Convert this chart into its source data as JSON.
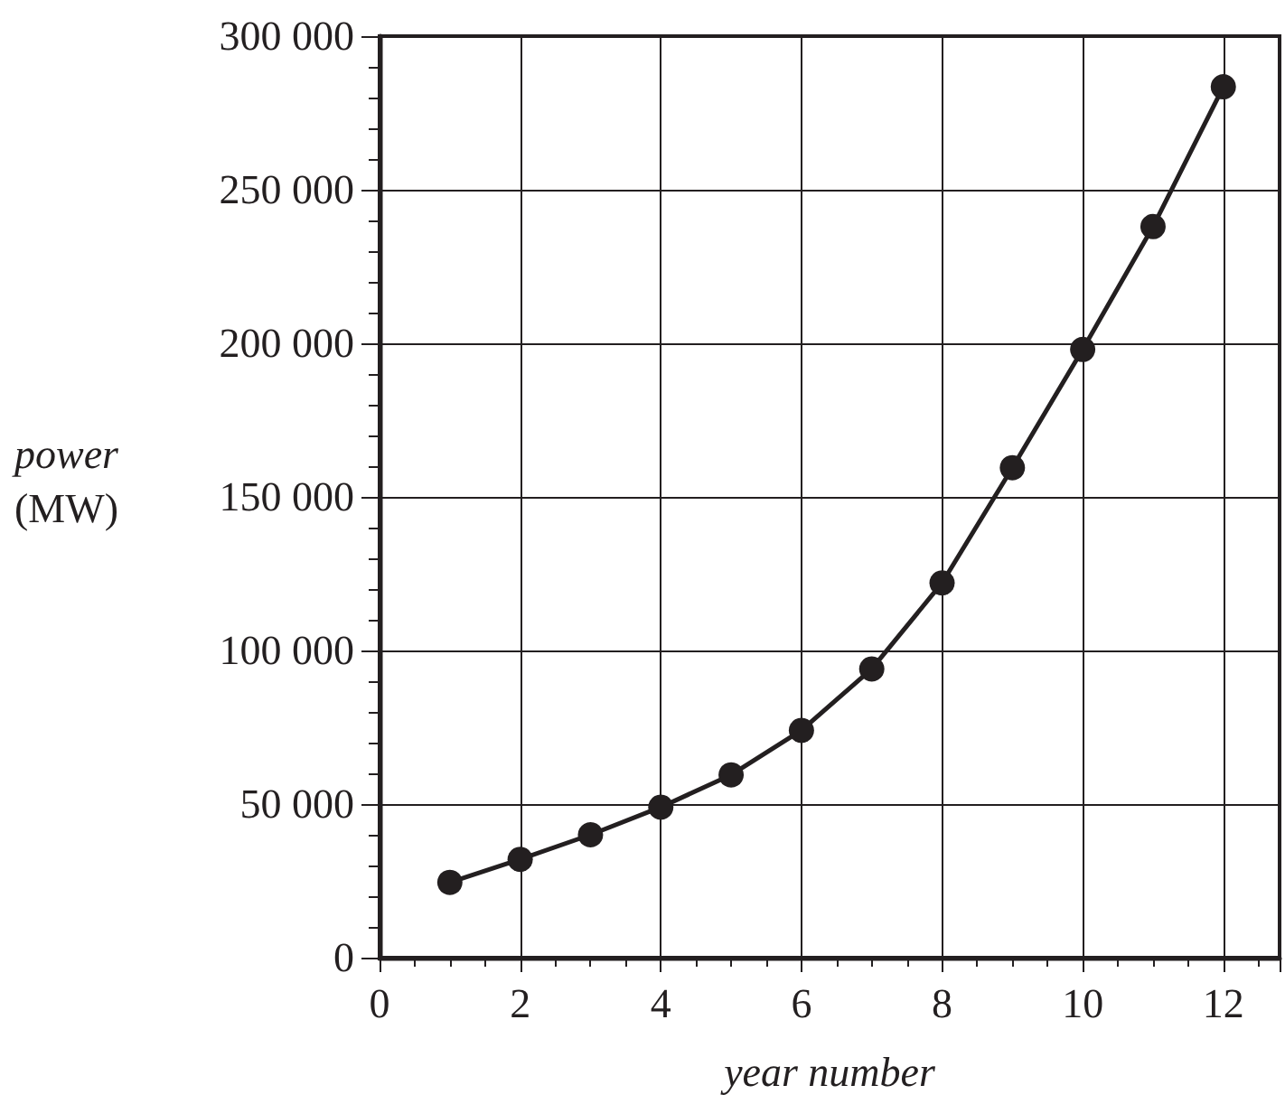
{
  "chart_data": {
    "type": "line",
    "xlabel": "year number",
    "ylabel": "power (MW)",
    "x": [
      1,
      2,
      3,
      4,
      5,
      6,
      7,
      8,
      9,
      10,
      11,
      12
    ],
    "series": [
      {
        "color": "#231f20",
        "values": [
          24500,
          32000,
          40000,
          49000,
          59500,
          74000,
          94000,
          122000,
          159500,
          198000,
          238000,
          283500
        ]
      }
    ],
    "xlim": [
      0,
      12.8
    ],
    "xticks": [
      0,
      2,
      4,
      6,
      8,
      10,
      12
    ],
    "ylim": [
      0,
      300000
    ],
    "yticks": [
      0,
      {
        "value": 50000,
        "label": "50 000"
      },
      {
        "value": 100000,
        "label": "100 000"
      },
      {
        "value": 150000,
        "label": "150 000"
      },
      {
        "value": 200000,
        "label": "200 000"
      },
      {
        "value": 250000,
        "label": "250 000"
      },
      {
        "value": 300000,
        "label": "300 000"
      }
    ],
    "grid": true,
    "marker": "circle",
    "line_style": "solid"
  }
}
